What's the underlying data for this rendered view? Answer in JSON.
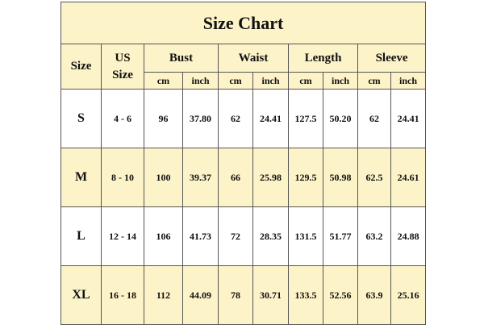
{
  "header": {
    "title": "Size Chart"
  },
  "table": {
    "columns": [
      {
        "label": "Size"
      },
      {
        "label": "US Size"
      },
      {
        "label": "Bust",
        "units": [
          "cm",
          "inch"
        ]
      },
      {
        "label": "Waist",
        "units": [
          "cm",
          "inch"
        ]
      },
      {
        "label": "Length",
        "units": [
          "cm",
          "inch"
        ]
      },
      {
        "label": "Sleeve",
        "units": [
          "cm",
          "inch"
        ]
      }
    ],
    "rows": [
      [
        "S",
        "4 - 6",
        "96",
        "37.80",
        "62",
        "24.41",
        "127.5",
        "50.20",
        "62",
        "24.41"
      ],
      [
        "M",
        "8 - 10",
        "100",
        "39.37",
        "66",
        "25.98",
        "129.5",
        "50.98",
        "62.5",
        "24.61"
      ],
      [
        "L",
        "12 - 14",
        "106",
        "41.73",
        "72",
        "28.35",
        "131.5",
        "51.77",
        "63.2",
        "24.88"
      ],
      [
        "XL",
        "16 - 18",
        "112",
        "44.09",
        "78",
        "30.71",
        "133.5",
        "52.56",
        "63.9",
        "25.16"
      ]
    ]
  }
}
